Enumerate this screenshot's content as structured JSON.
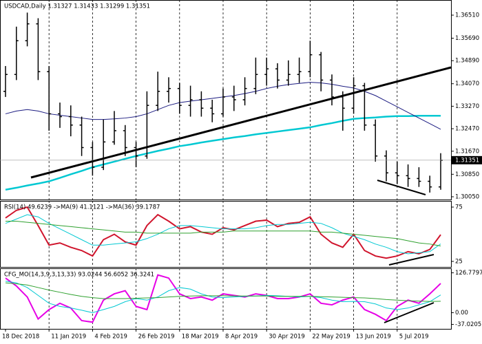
{
  "chart_data": [
    {
      "type": "ohlc",
      "header": "USDCAD,Daily  1.31327 1.31433 1.31299 1.31351",
      "last_price": {
        "value": 1.31351,
        "label": "1.31351"
      },
      "ylim": [
        1.29952,
        1.37048
      ],
      "yticks": [
        {
          "value": 1.3651,
          "label": "1.36510"
        },
        {
          "value": 1.3569,
          "label": "1.35690"
        },
        {
          "value": 1.3489,
          "label": "1.34890"
        },
        {
          "value": 1.3407,
          "label": "1.34070"
        },
        {
          "value": 1.3327,
          "label": "1.33270"
        },
        {
          "value": 1.3247,
          "label": "1.32470"
        },
        {
          "value": 1.3167,
          "label": "1.31670"
        },
        {
          "value": 1.3085,
          "label": "1.30850"
        },
        {
          "value": 1.3005,
          "label": "1.30050"
        }
      ],
      "color": "#000000",
      "open": [
        1.338,
        1.344,
        1.356,
        1.362,
        1.345,
        1.33,
        1.329,
        1.326,
        1.318,
        1.311,
        1.32,
        1.324,
        1.318,
        1.315,
        1.333,
        1.338,
        1.339,
        1.333,
        1.335,
        1.332,
        1.33,
        1.336,
        1.335,
        1.339,
        1.344,
        1.346,
        1.342,
        1.344,
        1.345,
        1.351,
        1.342,
        1.336,
        1.332,
        1.34,
        1.326,
        1.315,
        1.309,
        1.308,
        1.307,
        1.306,
        1.304
      ],
      "high": [
        1.347,
        1.361,
        1.366,
        1.364,
        1.347,
        1.334,
        1.333,
        1.329,
        1.32,
        1.328,
        1.331,
        1.326,
        1.32,
        1.338,
        1.345,
        1.343,
        1.341,
        1.34,
        1.338,
        1.335,
        1.339,
        1.34,
        1.343,
        1.35,
        1.35,
        1.348,
        1.349,
        1.35,
        1.356,
        1.352,
        1.344,
        1.338,
        1.343,
        1.341,
        1.328,
        1.317,
        1.313,
        1.312,
        1.311,
        1.308,
        1.316
      ],
      "low": [
        1.336,
        1.342,
        1.354,
        1.342,
        1.324,
        1.325,
        1.322,
        1.315,
        1.308,
        1.31,
        1.319,
        1.315,
        1.311,
        1.314,
        1.331,
        1.334,
        1.33,
        1.329,
        1.329,
        1.327,
        1.329,
        1.331,
        1.333,
        1.337,
        1.34,
        1.339,
        1.34,
        1.341,
        1.343,
        1.338,
        1.333,
        1.324,
        1.33,
        1.324,
        1.313,
        1.306,
        1.305,
        1.304,
        1.304,
        1.302,
        1.303
      ],
      "close": [
        1.344,
        1.356,
        1.362,
        1.345,
        1.33,
        1.329,
        1.326,
        1.318,
        1.311,
        1.32,
        1.324,
        1.318,
        1.315,
        1.333,
        1.338,
        1.339,
        1.333,
        1.335,
        1.332,
        1.33,
        1.336,
        1.335,
        1.339,
        1.344,
        1.346,
        1.342,
        1.344,
        1.345,
        1.351,
        1.342,
        1.336,
        1.332,
        1.34,
        1.326,
        1.315,
        1.309,
        1.308,
        1.307,
        1.306,
        1.304,
        1.3135
      ],
      "overlays": [
        {
          "color": "#00c8d2",
          "values": [
            1.303,
            1.3037,
            1.3045,
            1.3052,
            1.306,
            1.3072,
            1.3085,
            1.3097,
            1.311,
            1.312,
            1.313,
            1.314,
            1.315,
            1.3159,
            1.3168,
            1.3176,
            1.3185,
            1.3191,
            1.3198,
            1.3204,
            1.321,
            1.3216,
            1.3221,
            1.3227,
            1.3232,
            1.3237,
            1.3242,
            1.3247,
            1.3252,
            1.326,
            1.3267,
            1.3275,
            1.3282,
            1.3285,
            1.3287,
            1.329,
            1.3292,
            1.3292,
            1.3293,
            1.3293,
            1.3293
          ]
        },
        {
          "color": "#1a1a80",
          "values": [
            1.33,
            1.331,
            1.3315,
            1.331,
            1.33,
            1.3295,
            1.329,
            1.3285,
            1.328,
            1.328,
            1.3282,
            1.3285,
            1.329,
            1.33,
            1.3315,
            1.333,
            1.334,
            1.3345,
            1.335,
            1.3355,
            1.336,
            1.3365,
            1.3372,
            1.338,
            1.339,
            1.3398,
            1.3404,
            1.3408,
            1.3412,
            1.341,
            1.3405,
            1.3398,
            1.3392,
            1.338,
            1.3365,
            1.3345,
            1.3325,
            1.3305,
            1.3285,
            1.3265,
            1.3245
          ]
        }
      ]
    },
    {
      "type": "line",
      "header": "RSI(14) 49.6239 ->MA(9) 41.1121 ->MA(36) 39.1787",
      "ylim": [
        19.9,
        80.7
      ],
      "yticks": [
        75,
        25
      ],
      "series": [
        {
          "color": "#d0142c",
          "values": [
            65,
            72,
            75,
            58,
            40,
            42,
            38,
            35,
            30,
            45,
            50,
            43,
            40,
            58,
            68,
            62,
            55,
            57,
            52,
            50,
            56,
            54,
            58,
            62,
            63,
            57,
            60,
            61,
            66,
            50,
            42,
            38,
            50,
            35,
            30,
            28,
            30,
            34,
            32,
            36,
            49.6
          ]
        },
        {
          "color": "#00c8d2",
          "values": [
            60,
            64,
            68,
            66,
            60,
            55,
            50,
            45,
            40,
            40,
            41,
            42,
            43,
            46,
            50,
            55,
            58,
            58,
            57,
            56,
            55,
            55,
            55,
            56,
            58,
            59,
            59,
            60,
            61,
            60,
            56,
            51,
            48,
            45,
            41,
            38,
            34,
            32,
            33,
            34,
            41.1
          ]
        },
        {
          "color": "#2ea02e",
          "values": [
            62,
            62,
            61,
            60,
            59,
            58,
            57,
            56,
            55,
            54,
            53,
            52,
            52,
            51,
            51,
            51,
            51,
            51,
            52,
            52,
            52,
            53,
            53,
            53,
            53,
            53,
            53,
            53,
            53,
            52,
            52,
            51,
            50,
            49,
            48,
            47,
            46,
            44,
            42,
            41,
            39.2
          ]
        }
      ]
    },
    {
      "type": "line",
      "header": "CFG_MO(14,3,9,3,13,33) 93.0244 56.6052 36.3241",
      "ylim": [
        -51.3,
        141.1
      ],
      "yticks": [
        126.7797,
        {
          "value": 0,
          "label": "0.00"
        },
        -37.0205
      ],
      "categories": [
        "18 Dec 2018",
        null,
        null,
        null,
        "11 Jan 2019",
        null,
        null,
        null,
        "4 Feb 2019",
        null,
        null,
        null,
        "26 Feb 2019",
        null,
        null,
        null,
        "18 Mar 2019",
        null,
        null,
        null,
        "8 Apr 2019",
        null,
        null,
        null,
        "30 Apr 2019",
        null,
        null,
        null,
        "22 May 2019",
        null,
        null,
        null,
        "13 Jun 2019",
        null,
        null,
        null,
        "5 Jul 2019",
        null,
        null,
        null,
        null
      ],
      "series": [
        {
          "color": "#e600e6",
          "values": [
            110,
            85,
            50,
            -20,
            10,
            30,
            15,
            -25,
            -30,
            40,
            60,
            70,
            20,
            10,
            120,
            110,
            60,
            45,
            50,
            40,
            60,
            55,
            50,
            60,
            55,
            45,
            45,
            50,
            60,
            30,
            25,
            40,
            50,
            10,
            -5,
            -25,
            20,
            40,
            30,
            60,
            93
          ]
        },
        {
          "color": "#00c8d2",
          "values": [
            100,
            95,
            80,
            55,
            30,
            20,
            15,
            8,
            0,
            10,
            20,
            35,
            45,
            40,
            50,
            70,
            80,
            75,
            60,
            50,
            48,
            50,
            52,
            53,
            55,
            54,
            52,
            50,
            52,
            48,
            40,
            35,
            36,
            35,
            28,
            15,
            10,
            15,
            25,
            35,
            56.6
          ]
        },
        {
          "color": "#2ea02e",
          "values": [
            95,
            92,
            88,
            80,
            72,
            65,
            58,
            52,
            48,
            45,
            45,
            45,
            46,
            47,
            48,
            50,
            52,
            53,
            54,
            54,
            54,
            53,
            53,
            53,
            53,
            52,
            52,
            52,
            52,
            51,
            50,
            49,
            48,
            47,
            45,
            42,
            40,
            38,
            37,
            36,
            36.3
          ]
        }
      ]
    }
  ]
}
